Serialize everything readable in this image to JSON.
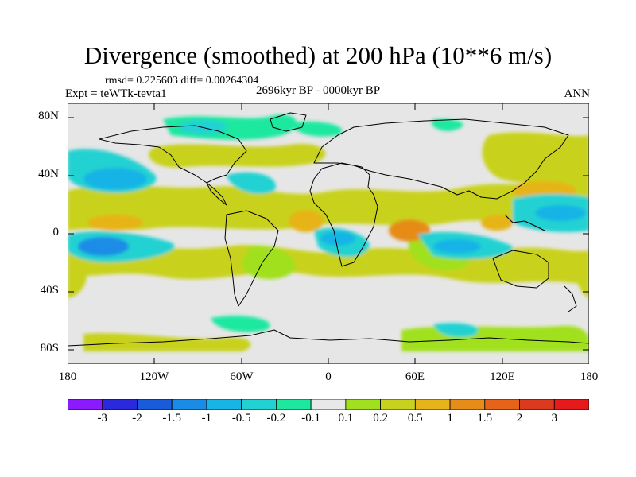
{
  "title": "Divergence (smoothed) at 200 hPa (10**6 m/s)",
  "stats": "rmsd= 0.225603 diff= 0.00264304",
  "experiment": "Expt = teWTk-tevta1",
  "period": "2696kyr BP - 0000kyr BP",
  "season": "ANN",
  "lat_labels": [
    "80N",
    "40N",
    "0",
    "40S",
    "80S"
  ],
  "lon_labels": [
    "180",
    "120W",
    "60W",
    "0",
    "60E",
    "120E",
    "180"
  ],
  "colorbar": {
    "labels": [
      "-3",
      "-2",
      "-1.5",
      "-1",
      "-0.5",
      "-0.2",
      "-0.1",
      "0.1",
      "0.2",
      "0.5",
      "1",
      "1.5",
      "2",
      "3"
    ],
    "colors": [
      "#8c1aff",
      "#2a2adc",
      "#1a5bd9",
      "#1a8ce6",
      "#19b4e6",
      "#22d2d2",
      "#1ee8a0",
      "#e8e8e8",
      "#a0e01e",
      "#c8d21e",
      "#e6b419",
      "#e68c19",
      "#e6641a",
      "#dc3a1e",
      "#e61a1a"
    ]
  },
  "chart_data": {
    "type": "map-contour",
    "variable": "Divergence (smoothed) at 200 hPa",
    "units": "10**6 m/s",
    "lon_range": [
      -180,
      180
    ],
    "lat_range": [
      -90,
      90
    ],
    "levels": [
      -3,
      -2,
      -1.5,
      -1,
      -0.5,
      -0.2,
      -0.1,
      0.1,
      0.2,
      0.5,
      1,
      1.5,
      2,
      3
    ],
    "anomalies": [
      {
        "name": "central-pacific-north-neg",
        "lon": -148,
        "lat": 38,
        "value": -0.5
      },
      {
        "name": "central-pacific-south-neg",
        "lon": -145,
        "lat": -8,
        "value": -1.0
      },
      {
        "name": "east-pacific-eq-pos",
        "lon": -150,
        "lat": 5,
        "value": 0.5
      },
      {
        "name": "atlantic-eq-pos",
        "lon": -5,
        "lat": 5,
        "value": 0.5
      },
      {
        "name": "east-atlantic-south-neg",
        "lon": 10,
        "lat": -5,
        "value": -0.5
      },
      {
        "name": "indian-ocean-eq-pos",
        "lon": 55,
        "lat": 3,
        "value": 0.5
      },
      {
        "name": "indian-ocean-south-neg",
        "lon": 78,
        "lat": -10,
        "value": -0.5
      },
      {
        "name": "west-pacific-north-neg",
        "lon": 160,
        "lat": 12,
        "value": -0.5
      },
      {
        "name": "north-pacific-pos",
        "lon": 155,
        "lat": 30,
        "value": 0.2
      },
      {
        "name": "arctic-canada-neg",
        "lon": -95,
        "lat": 72,
        "value": -0.2
      }
    ]
  }
}
